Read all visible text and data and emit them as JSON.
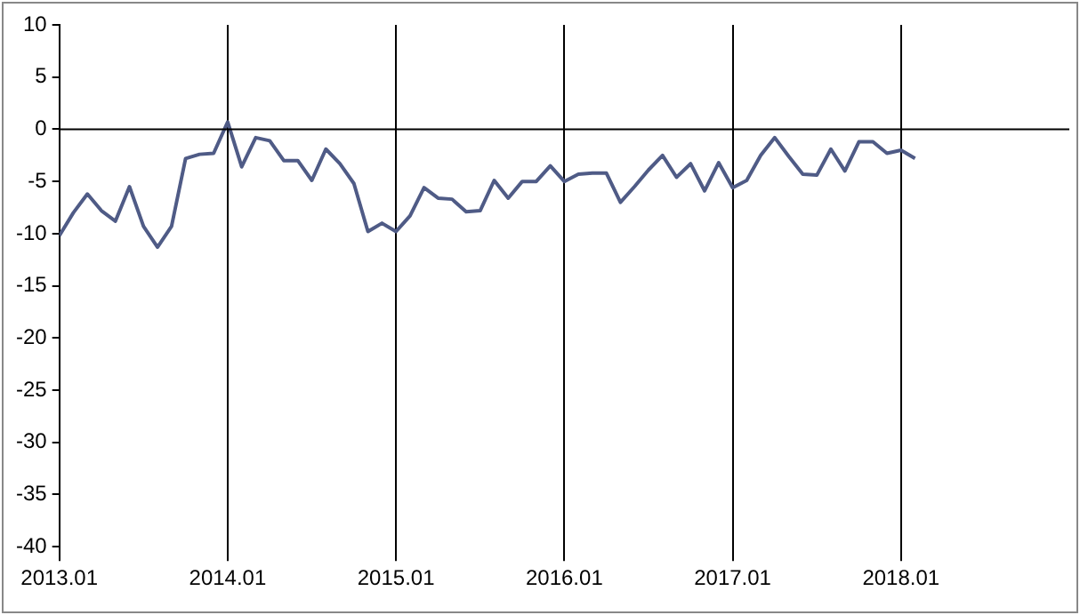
{
  "chart_data": {
    "type": "line",
    "x": [
      "2013-01",
      "2013-02",
      "2013-03",
      "2013-04",
      "2013-05",
      "2013-06",
      "2013-07",
      "2013-08",
      "2013-09",
      "2013-10",
      "2013-11",
      "2013-12",
      "2014-01",
      "2014-02",
      "2014-03",
      "2014-04",
      "2014-05",
      "2014-06",
      "2014-07",
      "2014-08",
      "2014-09",
      "2014-10",
      "2014-11",
      "2014-12",
      "2015-01",
      "2015-02",
      "2015-03",
      "2015-04",
      "2015-05",
      "2015-06",
      "2015-07",
      "2015-08",
      "2015-09",
      "2015-10",
      "2015-11",
      "2015-12",
      "2016-01",
      "2016-02",
      "2016-03",
      "2016-04",
      "2016-05",
      "2016-06",
      "2016-07",
      "2016-08",
      "2016-09",
      "2016-10",
      "2016-11",
      "2016-12",
      "2017-01",
      "2017-02",
      "2017-03",
      "2017-04",
      "2017-05",
      "2017-06",
      "2017-07",
      "2017-08",
      "2017-09",
      "2017-10",
      "2017-11",
      "2017-12",
      "2018-01",
      "2018-02"
    ],
    "series": [
      {
        "color": "#4f5b86",
        "values": [
          -10.2,
          -8.0,
          -6.2,
          -7.8,
          -8.8,
          -5.5,
          -9.3,
          -11.3,
          -9.3,
          -2.8,
          -2.4,
          -2.3,
          0.7,
          -3.6,
          -0.8,
          -1.1,
          -3.0,
          -3.0,
          -4.9,
          -1.9,
          -3.3,
          -5.2,
          -9.8,
          -9.0,
          -9.8,
          -8.3,
          -5.6,
          -6.6,
          -6.7,
          -7.9,
          -7.8,
          -4.9,
          -6.6,
          -5.0,
          -5.0,
          -3.5,
          -5.0,
          -4.3,
          -4.2,
          -4.2,
          -7.0,
          -5.5,
          -3.9,
          -2.5,
          -4.6,
          -3.3,
          -5.9,
          -3.2,
          -5.6,
          -4.9,
          -2.5,
          -0.8,
          -2.6,
          -4.3,
          -4.4,
          -1.9,
          -4.0,
          -1.2,
          -1.2,
          -2.3,
          -2.0,
          -2.8
        ]
      }
    ],
    "xlim": [
      "2013-01",
      "2019-01"
    ],
    "xticks": [
      {
        "value": "2013-01",
        "label": "2013.01"
      },
      {
        "value": "2014-01",
        "label": "2014.01"
      },
      {
        "value": "2015-01",
        "label": "2015.01"
      },
      {
        "value": "2016-01",
        "label": "2016.01"
      },
      {
        "value": "2017-01",
        "label": "2017.01"
      },
      {
        "value": "2018-01",
        "label": "2018.01"
      }
    ],
    "ylim": [
      -40,
      10
    ],
    "yticks": [
      -40,
      -35,
      -30,
      -25,
      -20,
      -15,
      -10,
      -5,
      0,
      5,
      10
    ],
    "grid": "x",
    "legend": false,
    "marker": "none",
    "line_style": "solid",
    "ref_lines": [
      {
        "axis": "y",
        "value": 0,
        "color": "#000000"
      }
    ]
  }
}
